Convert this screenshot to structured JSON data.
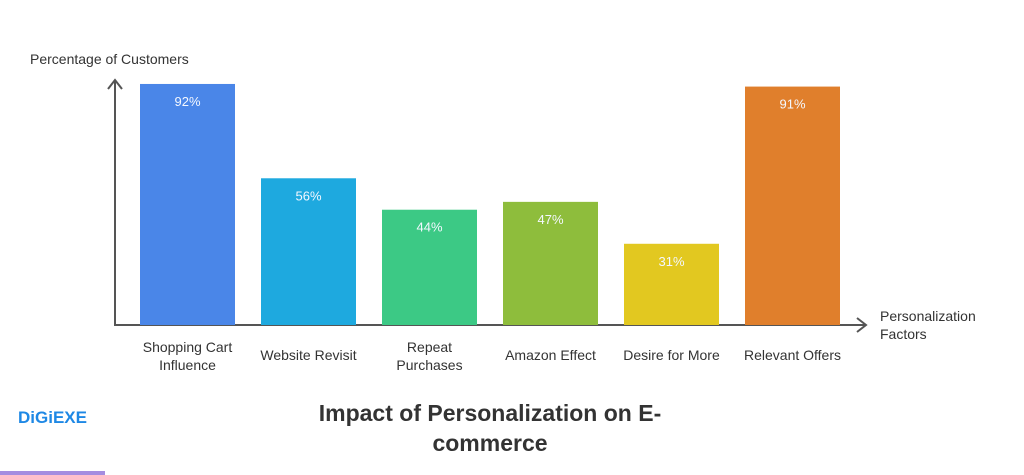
{
  "chart_data": {
    "type": "bar",
    "title": "Impact of Personalization on E-commerce",
    "xlabel": "Personalization Factors",
    "ylabel": "Percentage of Customers",
    "categories": [
      "Shopping Cart Influence",
      "Website Revisit",
      "Repeat Purchases",
      "Amazon Effect",
      "Desire for More",
      "Relevant Offers"
    ],
    "values": [
      92,
      56,
      44,
      47,
      31,
      91
    ],
    "data_labels": [
      "92%",
      "56%",
      "44%",
      "47%",
      "31%",
      "91%"
    ],
    "colors": [
      "#4a86e8",
      "#1ea9df",
      "#3cc985",
      "#8ebd3c",
      "#e2c820",
      "#e07f2c"
    ],
    "ylim": [
      0,
      100
    ],
    "grid": false
  },
  "brand": {
    "logo": "DiGiEXE"
  }
}
